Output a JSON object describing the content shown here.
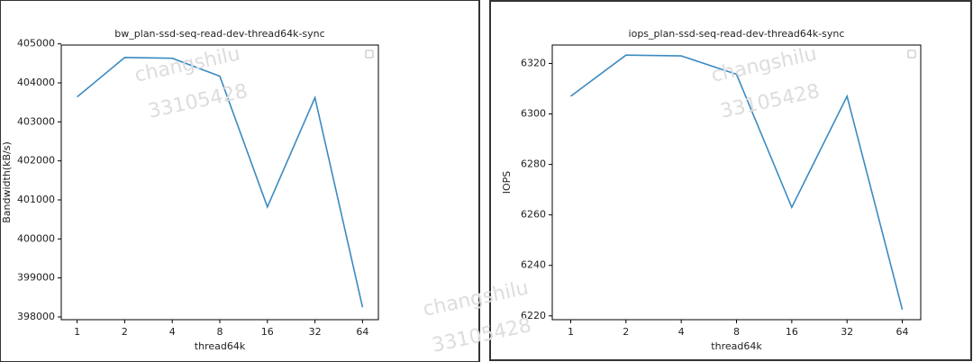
{
  "chart_data": [
    {
      "type": "line",
      "title": "bw_plan-ssd-seq-read-dev-thread64k-sync",
      "x_label": "thread64k",
      "y_label": "Bandwidth(kB/s)",
      "categories": [
        "1",
        "2",
        "4",
        "8",
        "16",
        "32",
        "64"
      ],
      "values": [
        403640,
        404650,
        404630,
        404170,
        400820,
        403620,
        398250
      ],
      "color": "#3b8bc2",
      "ylim": [
        397930,
        404970
      ],
      "yticks": [
        398000,
        399000,
        400000,
        401000,
        402000,
        403000,
        404000,
        405000
      ],
      "legend": "upper right"
    },
    {
      "type": "line",
      "title": "iops_plan-ssd-seq-read-dev-thread64k-sync",
      "x_label": "thread64k",
      "y_label": "IOPS",
      "categories": [
        "1",
        "2",
        "4",
        "8",
        "16",
        "32",
        "64"
      ],
      "values": [
        6307,
        6323.3,
        6323,
        6315.7,
        6263,
        6307,
        6222.5
      ],
      "color": "#3b8bc2",
      "ylim": [
        6218.5,
        6327.3
      ],
      "yticks": [
        6220,
        6240,
        6260,
        6280,
        6300,
        6320
      ],
      "legend": "upper right"
    }
  ],
  "watermark": [
    "changshilu",
    "33105428"
  ]
}
